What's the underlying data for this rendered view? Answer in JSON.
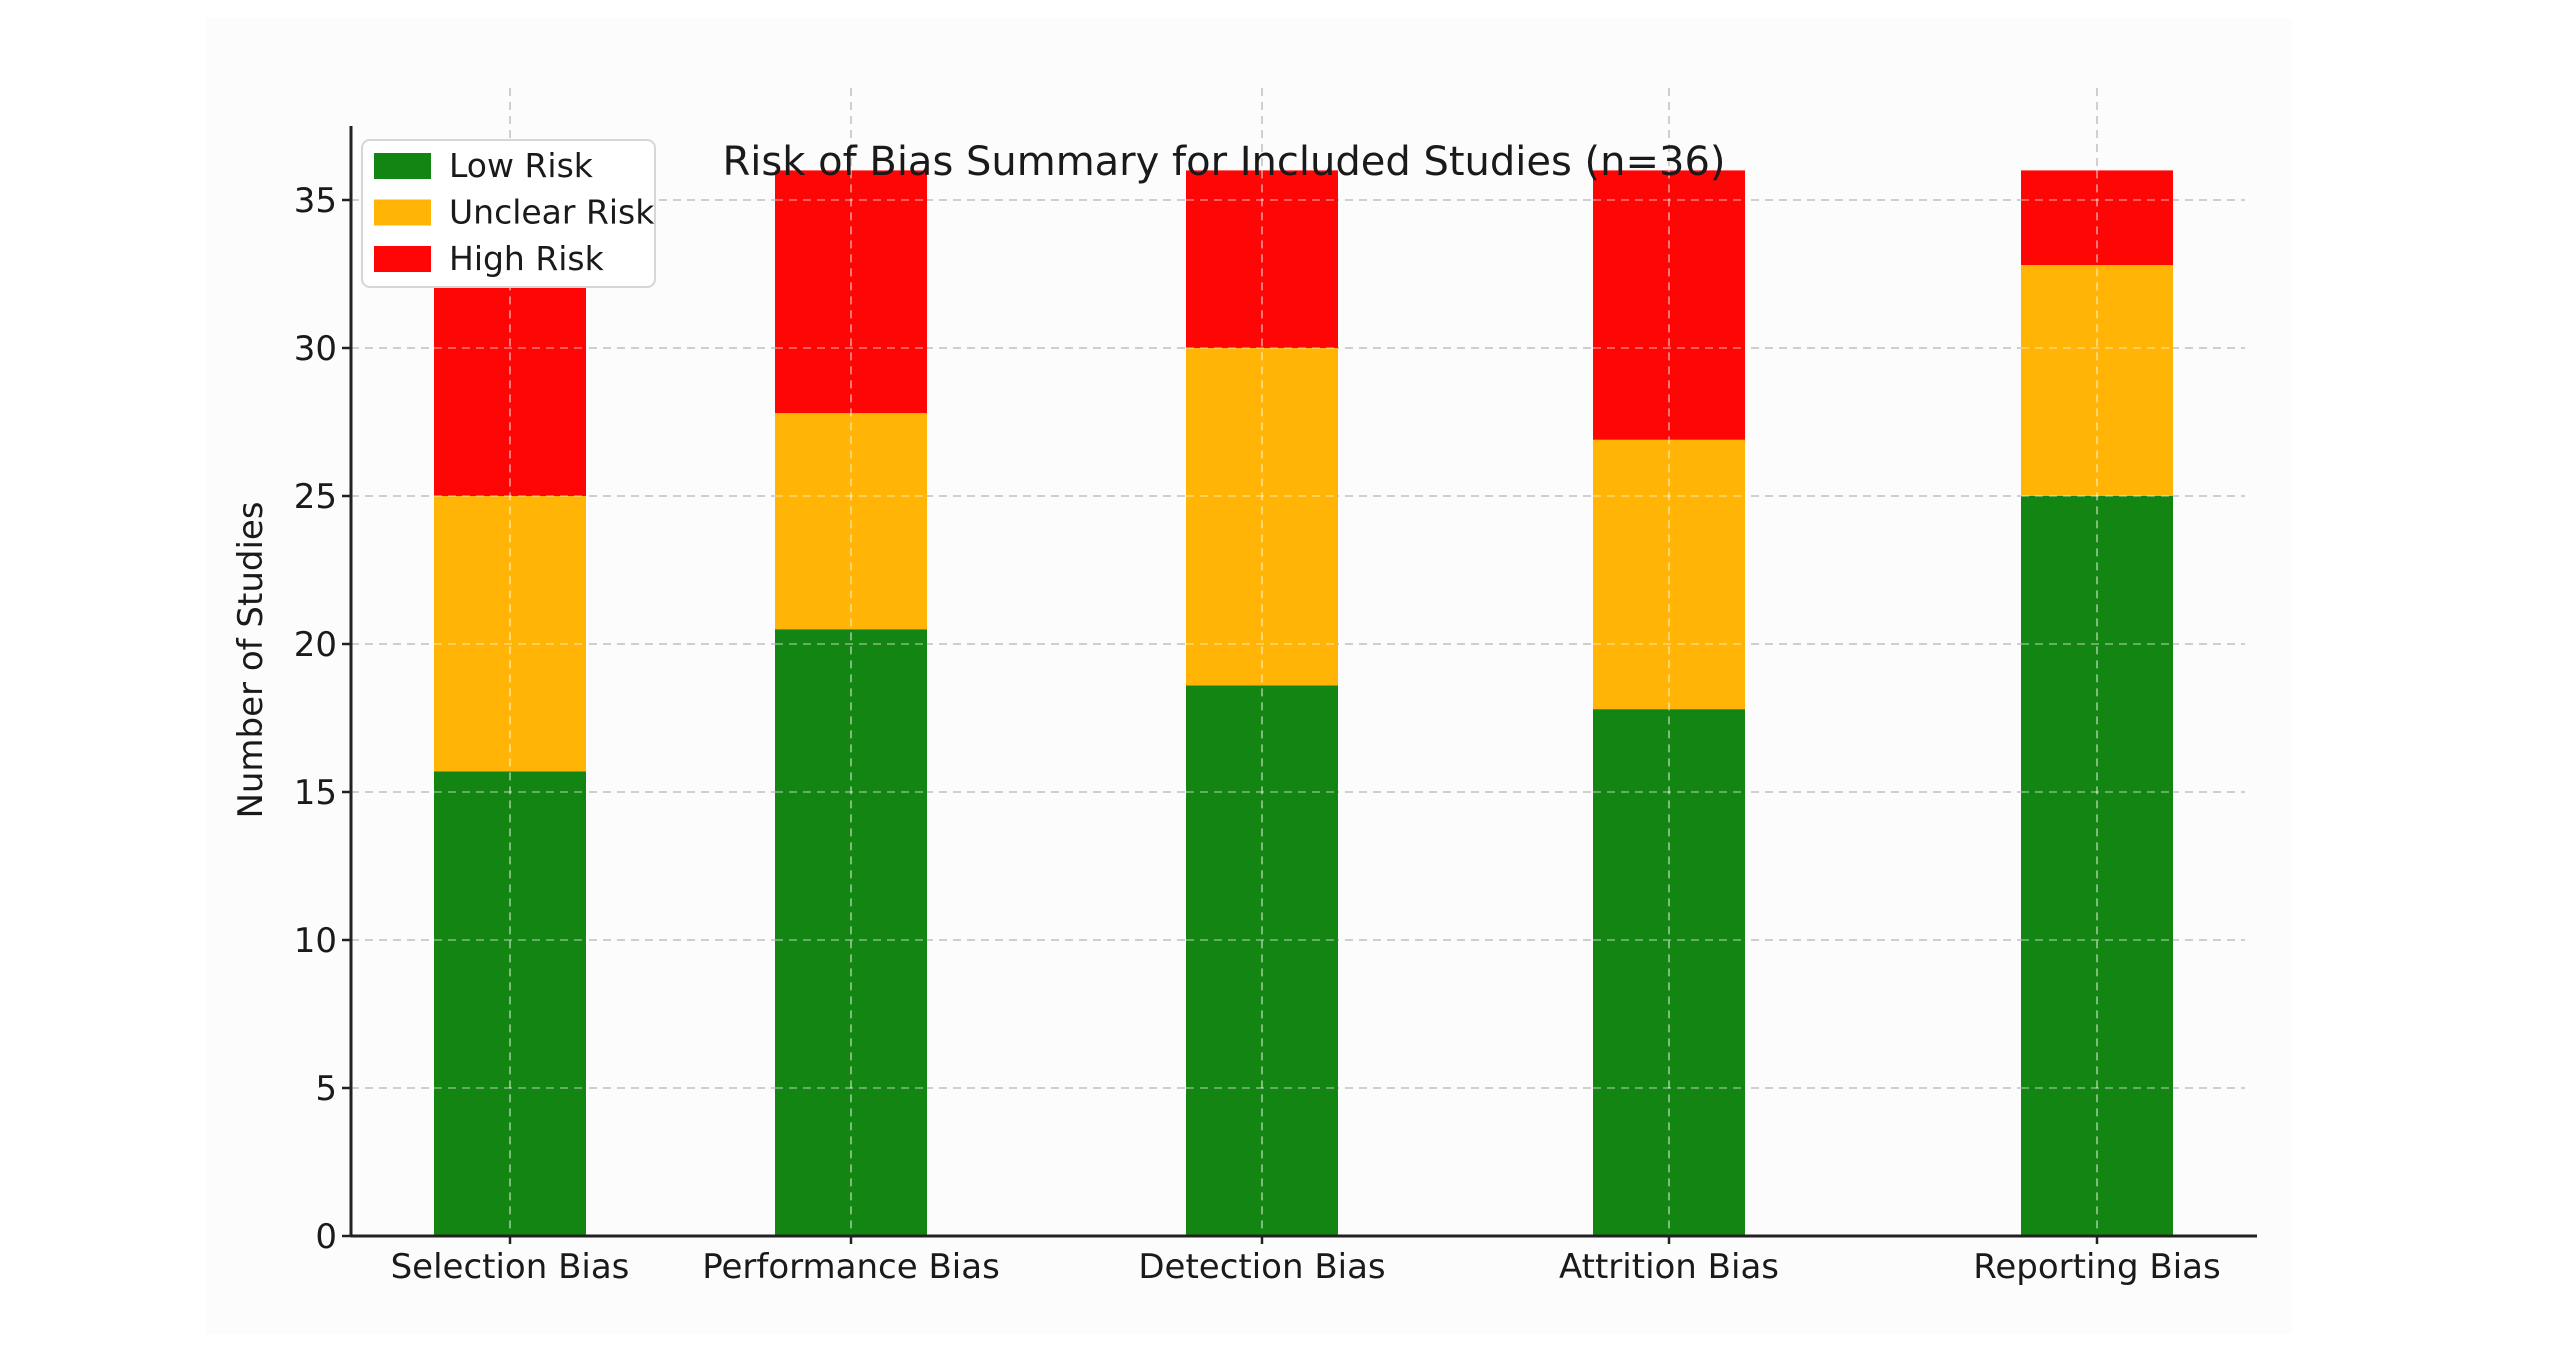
{
  "chart_data": {
    "type": "bar",
    "stacked": true,
    "title": "Risk of Bias Summary for Included Studies (n=36)",
    "xlabel": "",
    "ylabel": "Number of Studies",
    "categories": [
      "Selection Bias",
      "Performance Bias",
      "Detection Bias",
      "Attrition Bias",
      "Reporting Bias"
    ],
    "series": [
      {
        "name": "Low Risk",
        "color": "#128512",
        "values": [
          15.7,
          20.5,
          18.6,
          17.8,
          25.0
        ]
      },
      {
        "name": "Unclear Risk",
        "color": "#ffb406",
        "values": [
          9.3,
          7.3,
          11.4,
          9.1,
          7.8
        ]
      },
      {
        "name": "High Risk",
        "color": "#ff0606",
        "values": [
          11.0,
          8.2,
          6.0,
          9.1,
          3.2
        ]
      }
    ],
    "ylim": [
      0,
      37.5
    ],
    "yticks": [
      0,
      5,
      10,
      15,
      20,
      25,
      30,
      35
    ],
    "grid": true,
    "legend_position": "top-left"
  }
}
